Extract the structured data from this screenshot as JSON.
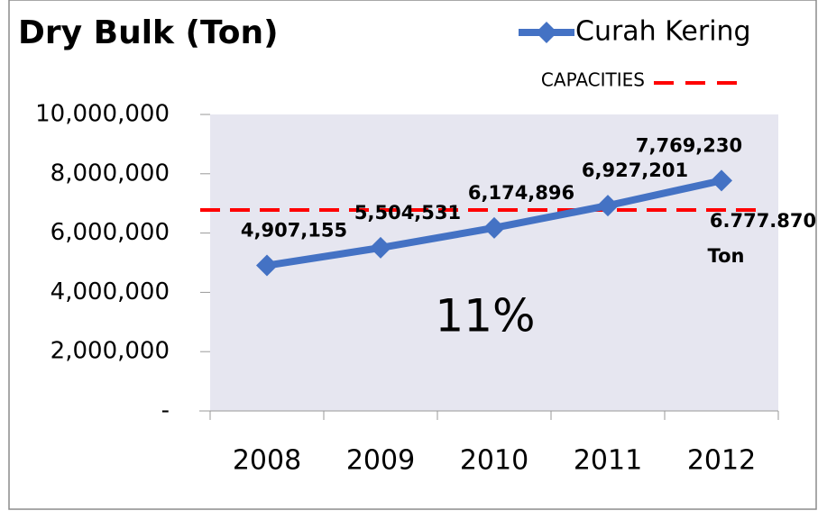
{
  "chart_data": {
    "type": "line",
    "title": "Dry Bulk (Ton)",
    "categories": [
      "2008",
      "2009",
      "2010",
      "2011",
      "2012"
    ],
    "series": [
      {
        "name": "Curah Kering",
        "color": "#4472c4",
        "values": [
          4907155,
          5504531,
          6174896,
          6927201,
          7769230
        ],
        "value_labels": [
          "4,907,155",
          "5,504,531",
          "6,174,896",
          "6,927,201",
          "7,769,230"
        ]
      }
    ],
    "capacity": {
      "name": "CAPACITIES",
      "value": 6777870,
      "label": "6.777.870",
      "unit": "Ton",
      "color": "#ff0000"
    },
    "annotation": "11%",
    "ylim": [
      0,
      10000000
    ],
    "yticks": [
      {
        "value": 0,
        "label": "-"
      },
      {
        "value": 2000000,
        "label": "2,000,000"
      },
      {
        "value": 4000000,
        "label": "4,000,000"
      },
      {
        "value": 6000000,
        "label": "6,000,000"
      },
      {
        "value": 8000000,
        "label": "8,000,000"
      },
      {
        "value": 10000000,
        "label": "10,000,000"
      }
    ],
    "grid": false,
    "legend": "top-right"
  }
}
